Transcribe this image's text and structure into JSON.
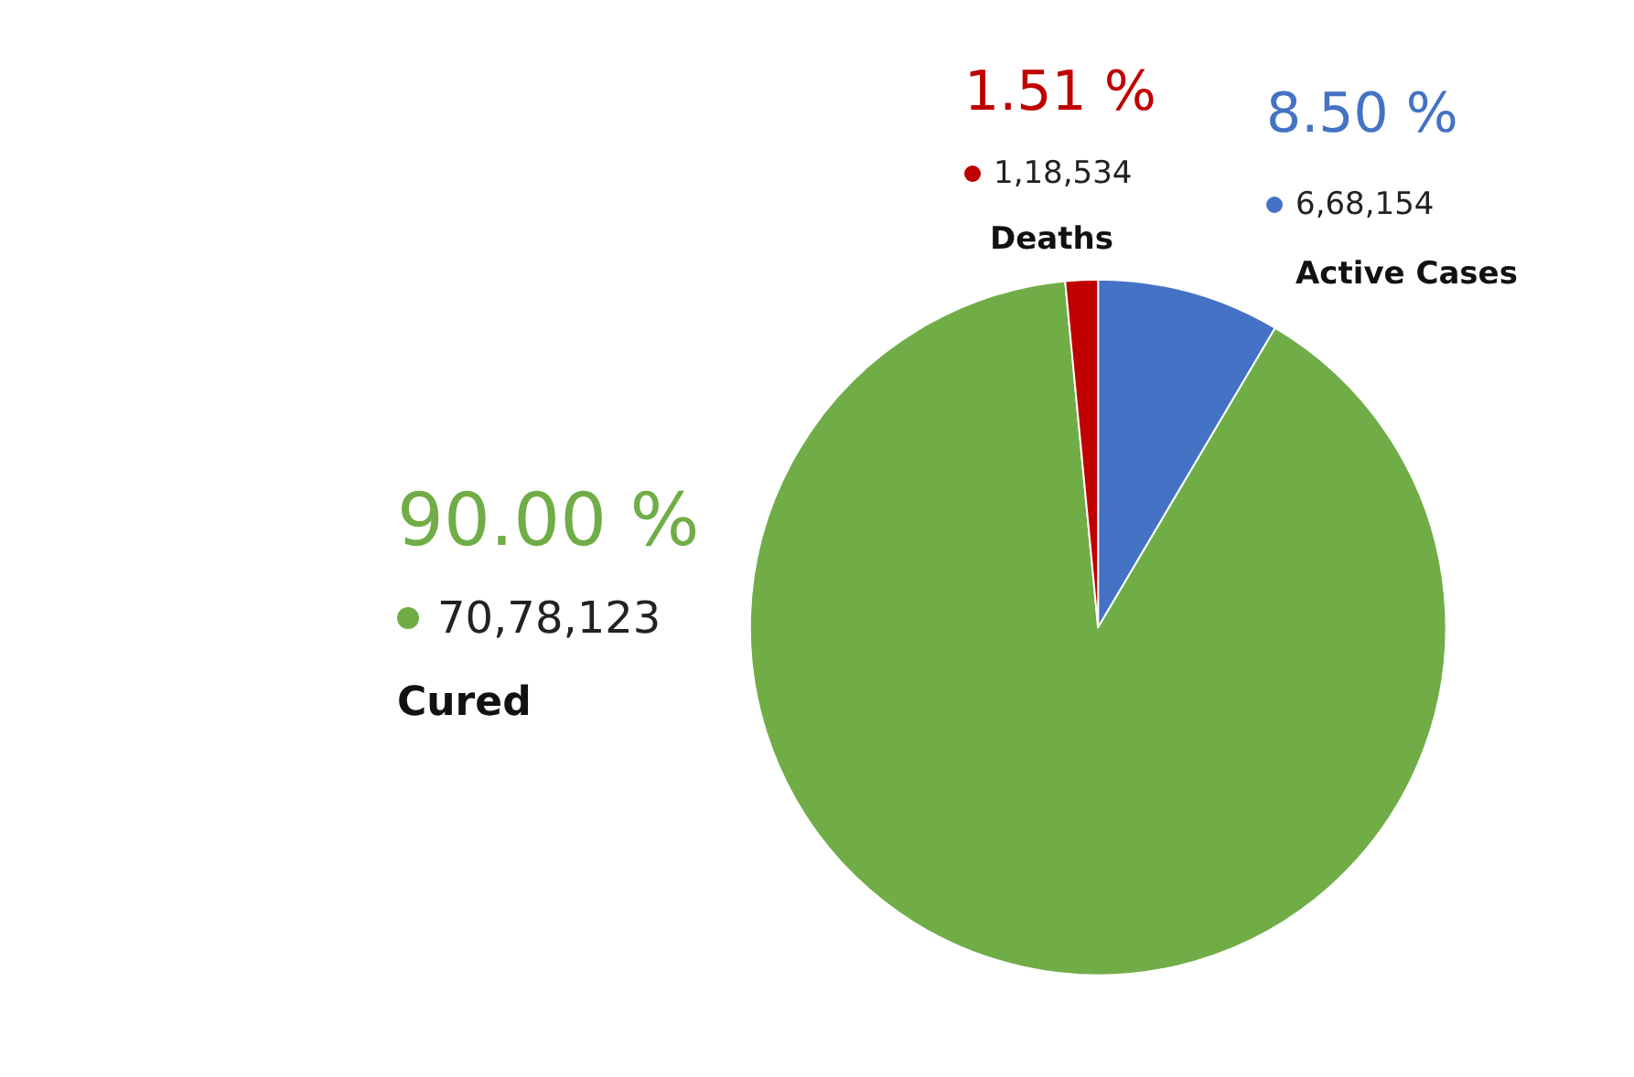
{
  "chart_data": {
    "type": "pie",
    "categories": [
      "Active Cases",
      "Cured",
      "Deaths"
    ],
    "values": [
      668154,
      7078123,
      118534
    ],
    "colors": [
      "#4472c4",
      "#70ad47",
      "#c00000"
    ],
    "value_labels": [
      "6,68,154",
      "70,78,123",
      "1,18,534"
    ],
    "annotations": [
      "8.50 %",
      "90.00 %",
      "1.51 %"
    ],
    "legend": false
  }
}
